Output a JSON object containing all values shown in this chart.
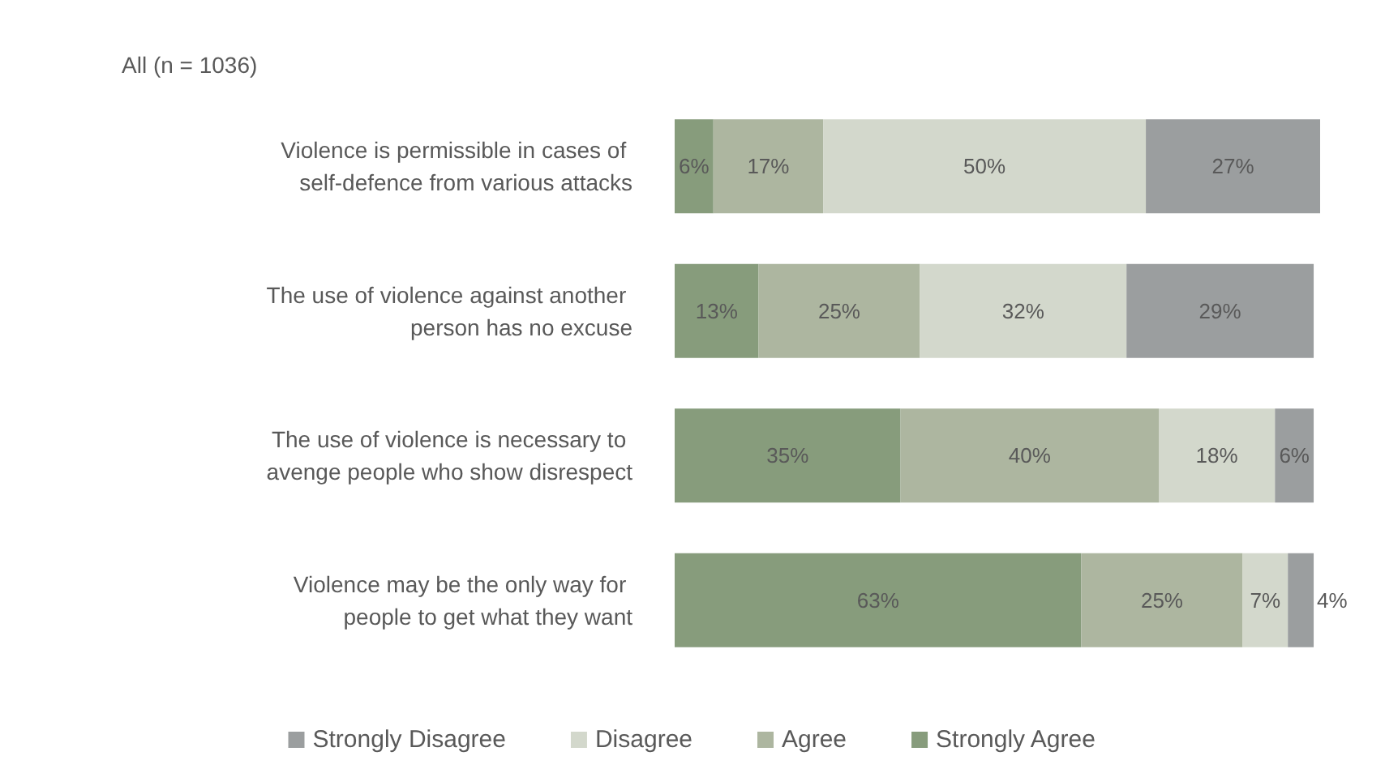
{
  "chart_data": {
    "type": "bar",
    "orientation": "horizontal",
    "stacked": true,
    "title": "All (n = 1036)",
    "categories": [
      "Violence is permissible in cases of self-defence from various attacks",
      "The use of violence against another person has no excuse",
      "The use of violence is necessary to avenge people who show disrespect",
      "Violence may be the only way for people to get what they want"
    ],
    "series": [
      {
        "name": "Strongly Agree",
        "color": "#879c7c",
        "values": [
          6,
          13,
          35,
          63
        ],
        "value_labels": [
          "6%",
          "13%",
          "35%",
          "63%"
        ]
      },
      {
        "name": "Agree",
        "color": "#adb6a0",
        "values": [
          17,
          25,
          40,
          25
        ],
        "value_labels": [
          "17%",
          "25%",
          "40%",
          "25%"
        ]
      },
      {
        "name": "Disagree",
        "color": "#d3d8cc",
        "values": [
          50,
          32,
          18,
          7
        ],
        "value_labels": [
          "50%",
          "32%",
          "18%",
          "7%"
        ]
      },
      {
        "name": "Strongly Disagree",
        "color": "#9b9e9f",
        "values": [
          27,
          29,
          6,
          4
        ],
        "value_labels": [
          "27%",
          "29%",
          "6%",
          "4%"
        ]
      }
    ],
    "legend": "bottom"
  }
}
